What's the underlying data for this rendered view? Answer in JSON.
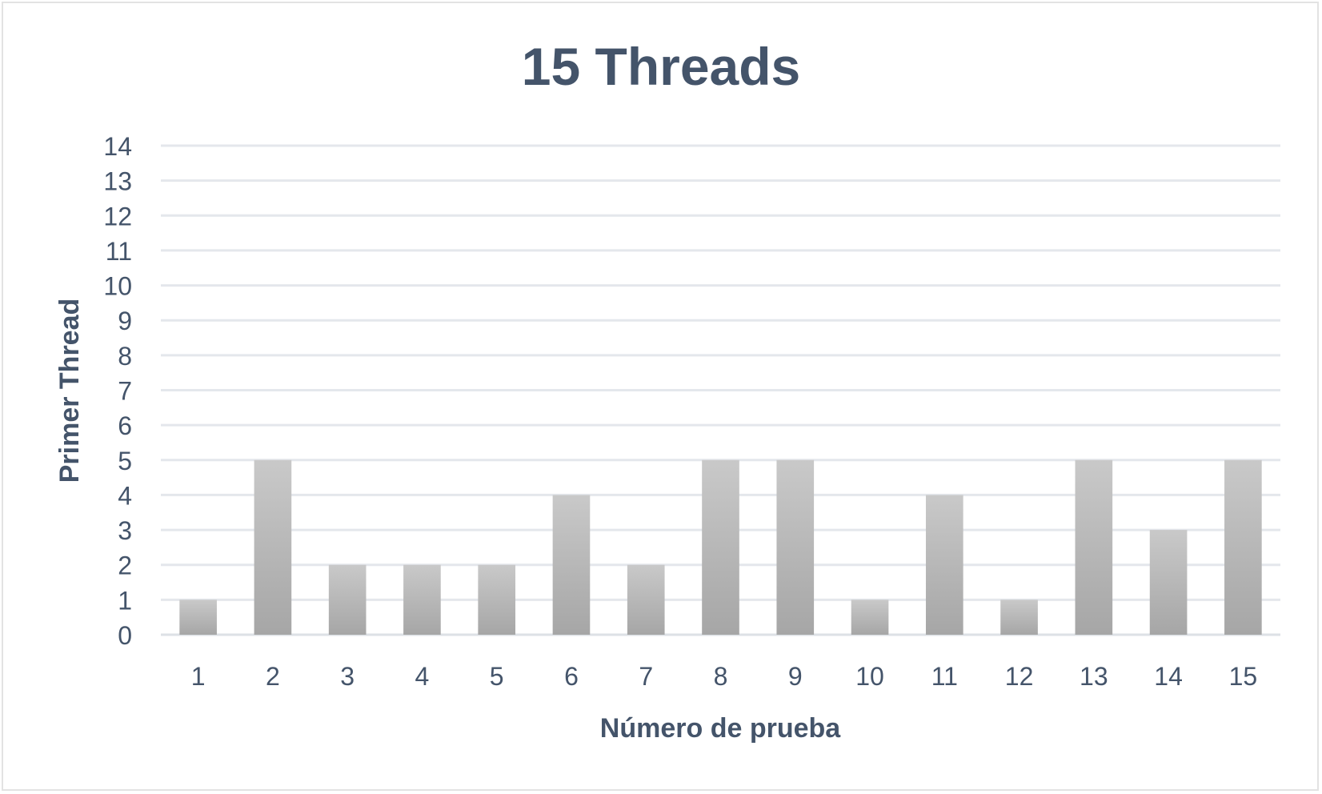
{
  "chart_data": {
    "type": "bar",
    "title": "15 Threads",
    "xlabel": "Número de prueba",
    "ylabel": "Primer Thread",
    "categories": [
      "1",
      "2",
      "3",
      "4",
      "5",
      "6",
      "7",
      "8",
      "9",
      "10",
      "11",
      "12",
      "13",
      "14",
      "15"
    ],
    "values": [
      1,
      5,
      2,
      2,
      2,
      4,
      2,
      5,
      5,
      1,
      4,
      1,
      5,
      3,
      5
    ],
    "ylim": [
      0,
      14
    ],
    "yticks": [
      0,
      1,
      2,
      3,
      4,
      5,
      6,
      7,
      8,
      9,
      10,
      11,
      12,
      13,
      14
    ],
    "grid": true,
    "legend": "none",
    "colors": {
      "bar_top": "#c9c9c9",
      "bar_bottom": "#a6a6a6",
      "text": "#44546a",
      "grid": "#e4e7ec"
    }
  }
}
